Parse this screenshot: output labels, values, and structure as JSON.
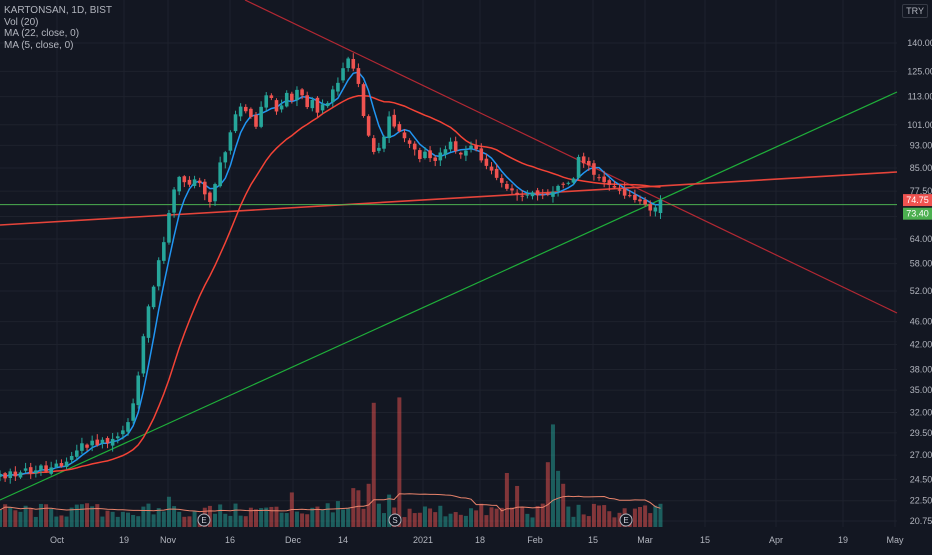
{
  "legend": {
    "title": "KARTONSAN, 1D, BIST",
    "vol": "Vol (20)",
    "ma22": "MA (22, close, 0)",
    "ma5": "MA (5, close, 0)"
  },
  "currency": "TRY",
  "colors": {
    "background": "#131722",
    "up": "#26a69a",
    "down": "#ef5350",
    "ma5": "#2196f3",
    "ma22": "#f44336",
    "trend_down": "#b22833",
    "trend_support": "#1fae3a",
    "trend_resist": "#e5443a",
    "hline": "#4caf50",
    "vol_ma": "#e9836b",
    "axis_text": "#b2b5be"
  },
  "chart_data": {
    "type": "candlestick",
    "price_axis": {
      "scale": "log",
      "ticks": [
        "140.00",
        "125.00",
        "113.00",
        "101.00",
        "93.00",
        "85.00",
        "77.50",
        "70.00",
        "64.00",
        "58.00",
        "52.00",
        "46.00",
        "42.00",
        "38.00",
        "35.00",
        "32.00",
        "29.50",
        "27.00",
        "24.50",
        "22.50",
        "20.75"
      ],
      "range": [
        20.0,
        150.0
      ]
    },
    "time_axis": {
      "labels": [
        "Oct",
        "19",
        "Nov",
        "16",
        "Dec",
        "14",
        "2021",
        "18",
        "Feb",
        "15",
        "Mar",
        "15",
        "Apr",
        "19",
        "May"
      ]
    },
    "last_price_label": "74.75",
    "hline_label": "73.40",
    "events": [
      "E",
      "S",
      "E"
    ],
    "closes": [
      25.0,
      24.6,
      25.3,
      24.8,
      25.2,
      25.6,
      25.1,
      25.4,
      25.9,
      25.3,
      25.7,
      26.1,
      25.8,
      26.3,
      26.9,
      27.5,
      28.3,
      27.8,
      28.6,
      28.1,
      28.7,
      28.3,
      28.8,
      29.1,
      29.8,
      30.8,
      33.2,
      37.1,
      43.4,
      48.9,
      52.9,
      58.8,
      63.2,
      71.0,
      78.0,
      82.0,
      80.3,
      79.5,
      81.2,
      80.0,
      76.5,
      74.2,
      79.7,
      86.9,
      90.5,
      98.0,
      105.3,
      108.6,
      106.6,
      104.2,
      100.2,
      108.5,
      113.6,
      112.4,
      106.5,
      109.1,
      114.7,
      111.2,
      116.1,
      113.6,
      108.4,
      111.5,
      106.0,
      109.6,
      110.1,
      116.3,
      119.4,
      126.6,
      131.6,
      126.4,
      118.9,
      104.6,
      96.7,
      90.6,
      92.1,
      96.3,
      104.4,
      100.3,
      98.4,
      95.7,
      93.6,
      91.5,
      88.1,
      90.7,
      88.4,
      87.4,
      90.4,
      91.6,
      94.4,
      90.9,
      89.7,
      91.1,
      92.9,
      91.6,
      87.6,
      85.7,
      84.1,
      81.7,
      80.1,
      78.2,
      77.7,
      76.3,
      75.8,
      76.4,
      77.1,
      76.2,
      76.4,
      76.4,
      77.3,
      79.1,
      79.7,
      80.1,
      81.5,
      88.8,
      86.6,
      85.9,
      82.7,
      81.6,
      80.3,
      79.4,
      78.6,
      77.6,
      76.1,
      76.0,
      74.8,
      74.4,
      73.5,
      71.7,
      72.6,
      74.8
    ]
  }
}
